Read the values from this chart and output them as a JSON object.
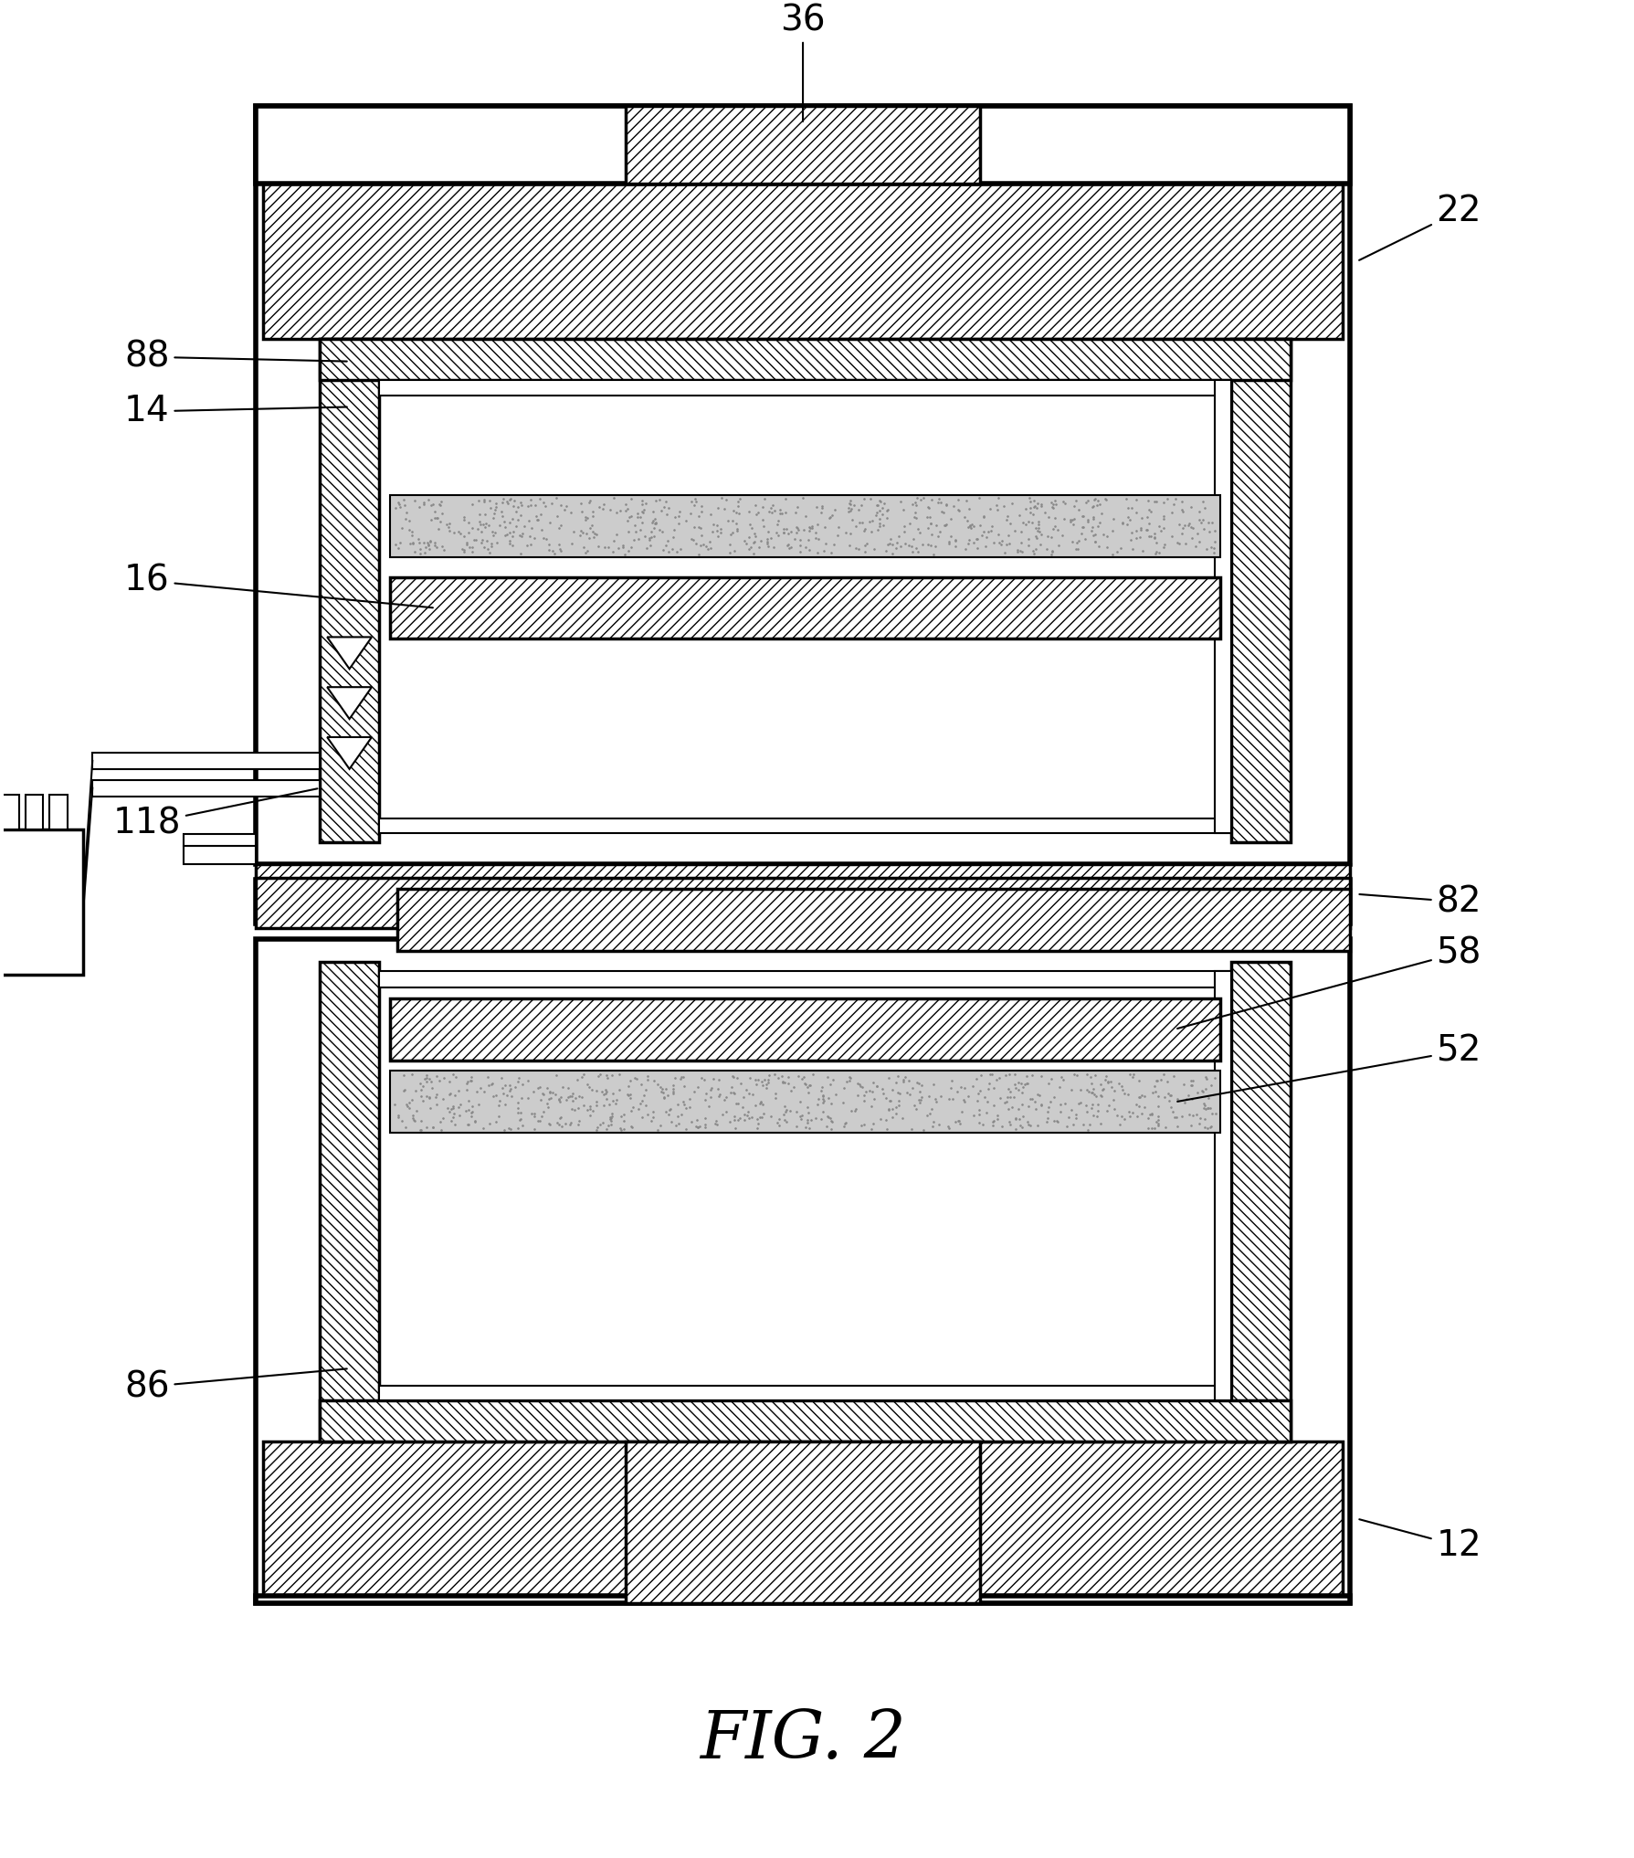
{
  "bg_color": "#ffffff",
  "fig_width": 17.89,
  "fig_height": 20.34,
  "title": "FIG. 2"
}
